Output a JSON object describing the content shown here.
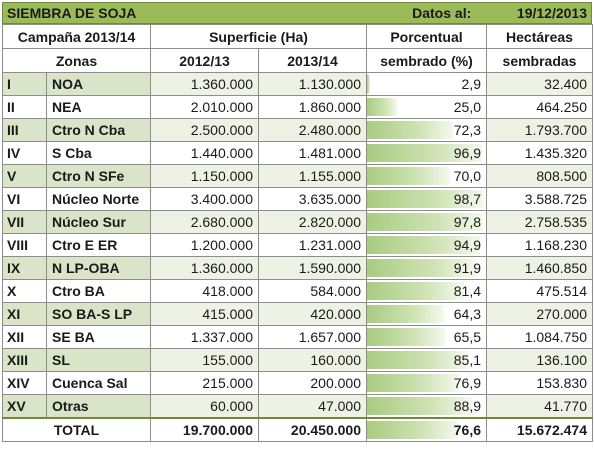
{
  "title": "SIEMBRA DE SOJA",
  "date_label": "Datos al:",
  "date_value": "19/12/2013",
  "headers": {
    "campaign": "Campaña 2013/14",
    "surface": "Superficie (Ha)",
    "percent_line1": "Porcentual",
    "percent_line2": "sembrado (%)",
    "hectares_line1": "Hectáreas",
    "hectares_line2": "sembradas",
    "zones": "Zonas",
    "year1": "2012/13",
    "year2": "2013/14"
  },
  "rows": [
    {
      "roman": "I",
      "zone": "NOA",
      "y1": "1.360.000",
      "y2": "1.130.000",
      "pct": "2,9",
      "pct_value": 2.9,
      "ha": "32.400"
    },
    {
      "roman": "II",
      "zone": "NEA",
      "y1": "2.010.000",
      "y2": "1.860.000",
      "pct": "25,0",
      "pct_value": 25.0,
      "ha": "464.250"
    },
    {
      "roman": "III",
      "zone": "Ctro N Cba",
      "y1": "2.500.000",
      "y2": "2.480.000",
      "pct": "72,3",
      "pct_value": 72.3,
      "ha": "1.793.700"
    },
    {
      "roman": "IV",
      "zone": "S Cba",
      "y1": "1.440.000",
      "y2": "1.481.000",
      "pct": "96,9",
      "pct_value": 96.9,
      "ha": "1.435.320"
    },
    {
      "roman": "V",
      "zone": "Ctro N SFe",
      "y1": "1.150.000",
      "y2": "1.155.000",
      "pct": "70,0",
      "pct_value": 70.0,
      "ha": "808.500"
    },
    {
      "roman": "VI",
      "zone": "Núcleo Norte",
      "y1": "3.400.000",
      "y2": "3.635.000",
      "pct": "98,7",
      "pct_value": 98.7,
      "ha": "3.588.725"
    },
    {
      "roman": "VII",
      "zone": "Núcleo Sur",
      "y1": "2.680.000",
      "y2": "2.820.000",
      "pct": "97,8",
      "pct_value": 97.8,
      "ha": "2.758.535"
    },
    {
      "roman": "VIII",
      "zone": "Ctro E ER",
      "y1": "1.200.000",
      "y2": "1.231.000",
      "pct": "94,9",
      "pct_value": 94.9,
      "ha": "1.168.230"
    },
    {
      "roman": "IX",
      "zone": "N LP-OBA",
      "y1": "1.360.000",
      "y2": "1.590.000",
      "pct": "91,9",
      "pct_value": 91.9,
      "ha": "1.460.850"
    },
    {
      "roman": "X",
      "zone": "Ctro BA",
      "y1": "418.000",
      "y2": "584.000",
      "pct": "81,4",
      "pct_value": 81.4,
      "ha": "475.514"
    },
    {
      "roman": "XI",
      "zone": "SO BA-S LP",
      "y1": "415.000",
      "y2": "420.000",
      "pct": "64,3",
      "pct_value": 64.3,
      "ha": "270.000"
    },
    {
      "roman": "XII",
      "zone": "SE BA",
      "y1": "1.337.000",
      "y2": "1.657.000",
      "pct": "65,5",
      "pct_value": 65.5,
      "ha": "1.084.750"
    },
    {
      "roman": "XIII",
      "zone": "SL",
      "y1": "155.000",
      "y2": "160.000",
      "pct": "85,1",
      "pct_value": 85.1,
      "ha": "136.100"
    },
    {
      "roman": "XIV",
      "zone": "Cuenca Sal",
      "y1": "215.000",
      "y2": "200.000",
      "pct": "76,9",
      "pct_value": 76.9,
      "ha": "153.830"
    },
    {
      "roman": "XV",
      "zone": "Otras",
      "y1": "60.000",
      "y2": "47.000",
      "pct": "88,9",
      "pct_value": 88.9,
      "ha": "41.770"
    }
  ],
  "total": {
    "label": "TOTAL",
    "y1": "19.700.000",
    "y2": "20.450.000",
    "pct": "76,6",
    "pct_value": 76.6,
    "ha": "15.672.474"
  },
  "colors": {
    "title_bg": "#9bbb59",
    "band_dark": "#d9e4c8",
    "band_light": "#edf2e4",
    "bar": "#a8cc80"
  }
}
